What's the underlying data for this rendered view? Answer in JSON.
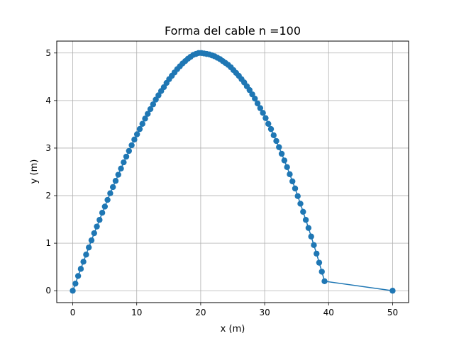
{
  "chart_data": {
    "type": "line",
    "title": "Forma del cable n =100",
    "xlabel": "x (m)",
    "ylabel": "y (m)",
    "xlim": [
      -2.5,
      52.5
    ],
    "ylim": [
      -0.25,
      5.25
    ],
    "xticks": [
      0,
      10,
      20,
      30,
      40,
      50
    ],
    "yticks": [
      0,
      1,
      2,
      3,
      4,
      5
    ],
    "xtick_labels": [
      "0",
      "10",
      "20",
      "30",
      "40",
      "50"
    ],
    "ytick_labels": [
      "0",
      "1",
      "2",
      "3",
      "4",
      "5"
    ],
    "grid": true,
    "marker": "circle",
    "color": "#1f77b4",
    "series": [
      {
        "points": [
          [
            0.0,
            0.0
          ],
          [
            0.42,
            0.15
          ],
          [
            0.84,
            0.31
          ],
          [
            1.26,
            0.46
          ],
          [
            1.67,
            0.61
          ],
          [
            2.09,
            0.76
          ],
          [
            2.51,
            0.91
          ],
          [
            2.93,
            1.06
          ],
          [
            3.35,
            1.21
          ],
          [
            3.77,
            1.35
          ],
          [
            4.19,
            1.49
          ],
          [
            4.61,
            1.64
          ],
          [
            5.02,
            1.77
          ],
          [
            5.44,
            1.91
          ],
          [
            5.86,
            2.05
          ],
          [
            6.28,
            2.18
          ],
          [
            6.7,
            2.31
          ],
          [
            7.12,
            2.44
          ],
          [
            7.54,
            2.57
          ],
          [
            7.96,
            2.7
          ],
          [
            8.37,
            2.82
          ],
          [
            8.79,
            2.94
          ],
          [
            9.21,
            3.06
          ],
          [
            9.63,
            3.18
          ],
          [
            10.05,
            3.29
          ],
          [
            10.47,
            3.4
          ],
          [
            10.89,
            3.51
          ],
          [
            11.31,
            3.62
          ],
          [
            11.72,
            3.72
          ],
          [
            12.14,
            3.82
          ],
          [
            12.56,
            3.92
          ],
          [
            12.98,
            4.02
          ],
          [
            13.4,
            4.11
          ],
          [
            13.82,
            4.2
          ],
          [
            14.24,
            4.28
          ],
          [
            14.66,
            4.37
          ],
          [
            15.07,
            4.45
          ],
          [
            15.49,
            4.52
          ],
          [
            15.91,
            4.59
          ],
          [
            16.33,
            4.66
          ],
          [
            16.75,
            4.72
          ],
          [
            17.17,
            4.78
          ],
          [
            17.59,
            4.83
          ],
          [
            18.01,
            4.88
          ],
          [
            18.42,
            4.92
          ],
          [
            18.84,
            4.96
          ],
          [
            19.26,
            4.98
          ],
          [
            19.68,
            5.0
          ],
          [
            20.1,
            5.0
          ],
          [
            20.52,
            4.99
          ],
          [
            20.94,
            4.98
          ],
          [
            21.36,
            4.97
          ],
          [
            21.77,
            4.95
          ],
          [
            22.19,
            4.93
          ],
          [
            22.61,
            4.9
          ],
          [
            23.03,
            4.87
          ],
          [
            23.45,
            4.83
          ],
          [
            23.87,
            4.79
          ],
          [
            24.29,
            4.75
          ],
          [
            24.71,
            4.7
          ],
          [
            25.12,
            4.64
          ],
          [
            25.54,
            4.58
          ],
          [
            25.96,
            4.52
          ],
          [
            26.38,
            4.45
          ],
          [
            26.8,
            4.38
          ],
          [
            27.22,
            4.3
          ],
          [
            27.64,
            4.22
          ],
          [
            28.06,
            4.13
          ],
          [
            28.47,
            4.04
          ],
          [
            28.89,
            3.94
          ],
          [
            29.31,
            3.84
          ],
          [
            29.73,
            3.74
          ],
          [
            30.15,
            3.63
          ],
          [
            30.57,
            3.51
          ],
          [
            30.99,
            3.4
          ],
          [
            31.41,
            3.27
          ],
          [
            31.82,
            3.15
          ],
          [
            32.24,
            3.02
          ],
          [
            32.66,
            2.88
          ],
          [
            33.08,
            2.74
          ],
          [
            33.5,
            2.6
          ],
          [
            33.92,
            2.45
          ],
          [
            34.34,
            2.3
          ],
          [
            34.76,
            2.15
          ],
          [
            35.17,
            1.99
          ],
          [
            35.59,
            1.83
          ],
          [
            36.01,
            1.66
          ],
          [
            36.43,
            1.49
          ],
          [
            36.85,
            1.32
          ],
          [
            37.27,
            1.14
          ],
          [
            37.69,
            0.96
          ],
          [
            38.11,
            0.78
          ],
          [
            38.52,
            0.59
          ],
          [
            38.94,
            0.4
          ],
          [
            39.36,
            0.2
          ],
          [
            50.0,
            0.0
          ]
        ]
      }
    ]
  }
}
